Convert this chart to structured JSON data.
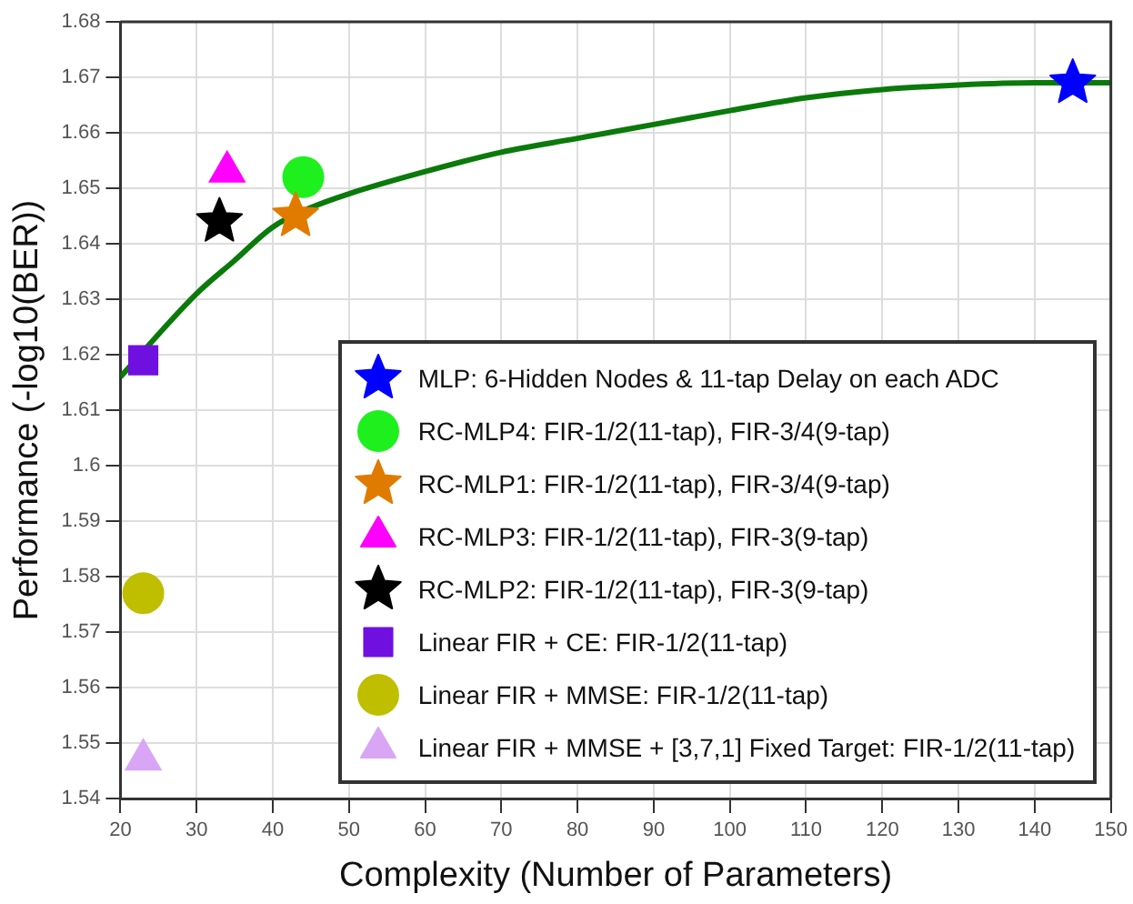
{
  "chart_data": {
    "type": "scatter",
    "xlabel": "Complexity (Number of Parameters)",
    "ylabel": "Performance (-log10(BER))",
    "xlim": [
      20,
      150
    ],
    "xticks": [
      20,
      30,
      40,
      50,
      60,
      70,
      80,
      90,
      100,
      110,
      120,
      130,
      140,
      150
    ],
    "ylim": [
      1.54,
      1.68
    ],
    "yticks": [
      1.54,
      1.55,
      1.56,
      1.57,
      1.58,
      1.59,
      1.6,
      1.61,
      1.62,
      1.63,
      1.64,
      1.65,
      1.66,
      1.67,
      1.68
    ],
    "grid": true,
    "legend": "bottom right",
    "series": [
      {
        "type": "line",
        "color": "#0a7a0a",
        "marker": "none",
        "line_style": "solid",
        "x": [
          20,
          30,
          35,
          40,
          45,
          50,
          60,
          70,
          80,
          90,
          100,
          110,
          120,
          130,
          140,
          150
        ],
        "values": [
          1.616,
          1.631,
          1.637,
          1.643,
          1.6465,
          1.649,
          1.653,
          1.6565,
          1.659,
          1.6615,
          1.664,
          1.6663,
          1.6678,
          1.6686,
          1.669,
          1.669
        ]
      },
      {
        "name": "MLP: 6-Hidden Nodes & 11-tap Delay on each ADC",
        "color": "#0000ff",
        "marker": "star",
        "x": [
          145
        ],
        "values": [
          1.669
        ]
      },
      {
        "name": "RC-MLP4: FIR-1/2(11-tap), FIR-3/4(9-tap)",
        "color": "#1ef01e",
        "marker": "circle",
        "x": [
          44
        ],
        "values": [
          1.652
        ]
      },
      {
        "name": "RC-MLP1: FIR-1/2(11-tap), FIR-3/4(9-tap)",
        "color": "#e07b00",
        "marker": "star",
        "x": [
          43
        ],
        "values": [
          1.645
        ]
      },
      {
        "name": "RC-MLP3: FIR-1/2(11-tap), FIR-3(9-tap)",
        "color": "#ff00ff",
        "marker": "triangle",
        "x": [
          34
        ],
        "values": [
          1.653
        ]
      },
      {
        "name": "RC-MLP2: FIR-1/2(11-tap), FIR-3(9-tap)",
        "color": "#000000",
        "marker": "star",
        "x": [
          33
        ],
        "values": [
          1.644
        ]
      },
      {
        "name": "Linear FIR + CE: FIR-1/2(11-tap)",
        "color": "#7010e0",
        "marker": "square",
        "x": [
          23
        ],
        "values": [
          1.619
        ]
      },
      {
        "name": "Linear FIR + MMSE: FIR-1/2(11-tap)",
        "color": "#bfbf00",
        "marker": "circle",
        "x": [
          23
        ],
        "values": [
          1.577
        ]
      },
      {
        "name": "Linear FIR + MMSE + [3,7,1] Fixed Target: FIR-1/2(11-tap)",
        "color": "#d9a6f5",
        "marker": "triangle",
        "x": [
          23
        ],
        "values": [
          1.547
        ]
      }
    ]
  }
}
